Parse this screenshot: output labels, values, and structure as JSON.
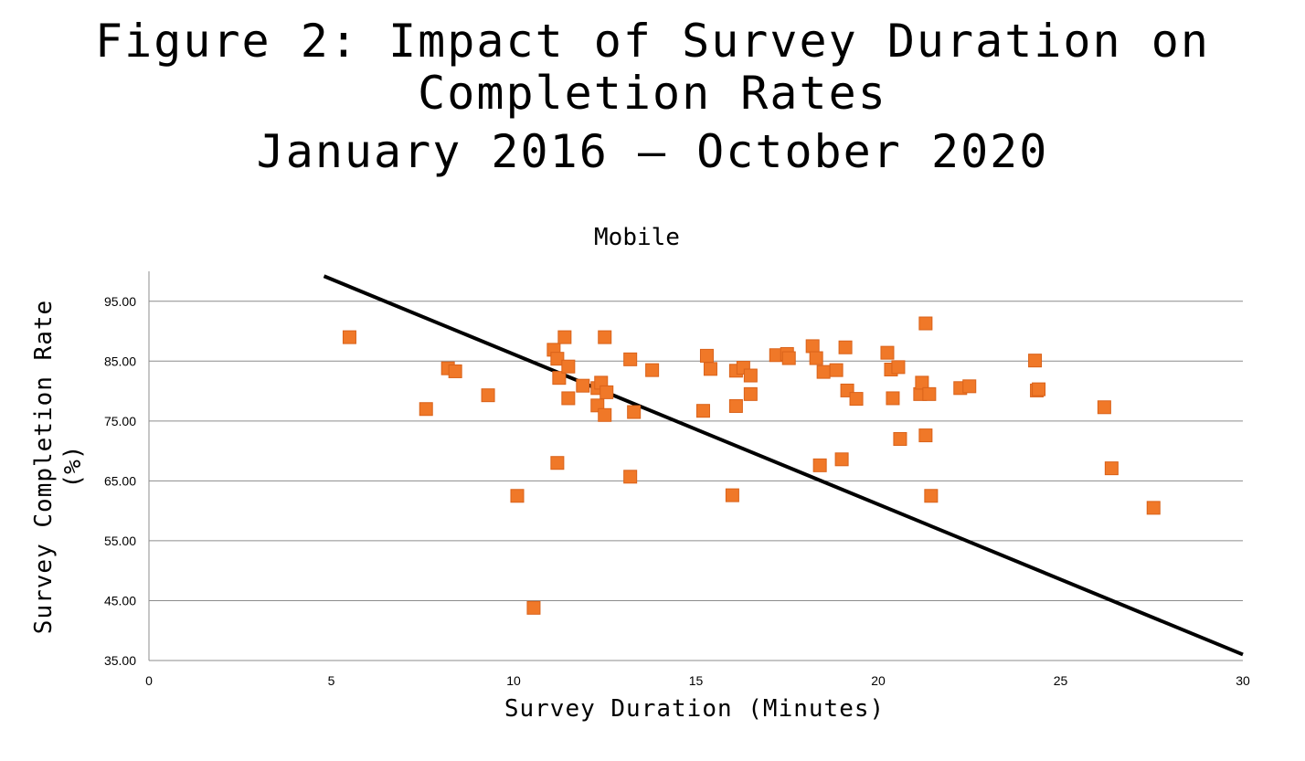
{
  "figure": {
    "title_line1": "Figure 2: Impact of Survey Duration on",
    "title_line2": "Completion Rates",
    "title_line3": "January 2016 – October 2020"
  },
  "chart_data": {
    "type": "scatter",
    "title": "Mobile",
    "xlabel": "Survey Duration (Minutes)",
    "ylabel_line1": "Survey Completion Rate",
    "ylabel_line2": "(%)",
    "xlim": [
      0,
      30
    ],
    "ylim": [
      35,
      100
    ],
    "x_ticks": [
      0,
      5,
      10,
      15,
      20,
      25,
      30
    ],
    "y_ticks": [
      35,
      45,
      55,
      65,
      75,
      85,
      95
    ],
    "x_tick_labels": [
      "0",
      "5",
      "10",
      "15",
      "20",
      "25",
      "30"
    ],
    "y_tick_labels": [
      "35.00",
      "45.00",
      "55.00",
      "65.00",
      "75.00",
      "85.00",
      "95.00"
    ],
    "grid": "horizontal",
    "marker_color": "#f07828",
    "trendline_color": "#000000",
    "trendline": {
      "x": [
        4.8,
        30
      ],
      "y": [
        99.2,
        36
      ]
    },
    "points": [
      {
        "x": 5.5,
        "y": 89.0
      },
      {
        "x": 7.6,
        "y": 77.0
      },
      {
        "x": 8.2,
        "y": 83.8
      },
      {
        "x": 8.4,
        "y": 83.3
      },
      {
        "x": 9.3,
        "y": 79.3
      },
      {
        "x": 10.1,
        "y": 62.5
      },
      {
        "x": 10.55,
        "y": 43.8
      },
      {
        "x": 11.1,
        "y": 86.9
      },
      {
        "x": 11.2,
        "y": 85.4
      },
      {
        "x": 11.25,
        "y": 82.2
      },
      {
        "x": 11.2,
        "y": 68.0
      },
      {
        "x": 11.4,
        "y": 89.0
      },
      {
        "x": 11.5,
        "y": 84.1
      },
      {
        "x": 11.5,
        "y": 78.8
      },
      {
        "x": 11.9,
        "y": 80.9
      },
      {
        "x": 12.3,
        "y": 80.5
      },
      {
        "x": 12.3,
        "y": 77.6
      },
      {
        "x": 12.4,
        "y": 81.4
      },
      {
        "x": 12.5,
        "y": 89.0
      },
      {
        "x": 12.55,
        "y": 79.8
      },
      {
        "x": 12.5,
        "y": 76.0
      },
      {
        "x": 13.2,
        "y": 85.3
      },
      {
        "x": 13.3,
        "y": 76.5
      },
      {
        "x": 13.2,
        "y": 65.7
      },
      {
        "x": 13.8,
        "y": 83.5
      },
      {
        "x": 15.2,
        "y": 76.7
      },
      {
        "x": 15.3,
        "y": 85.9
      },
      {
        "x": 15.4,
        "y": 83.7
      },
      {
        "x": 16.0,
        "y": 62.6
      },
      {
        "x": 16.1,
        "y": 83.4
      },
      {
        "x": 16.1,
        "y": 77.5
      },
      {
        "x": 16.3,
        "y": 83.9
      },
      {
        "x": 16.5,
        "y": 82.6
      },
      {
        "x": 16.5,
        "y": 79.5
      },
      {
        "x": 17.2,
        "y": 86.0
      },
      {
        "x": 17.5,
        "y": 86.2
      },
      {
        "x": 17.55,
        "y": 85.5
      },
      {
        "x": 18.2,
        "y": 87.5
      },
      {
        "x": 18.3,
        "y": 85.5
      },
      {
        "x": 18.4,
        "y": 67.6
      },
      {
        "x": 18.5,
        "y": 83.2
      },
      {
        "x": 18.85,
        "y": 83.5
      },
      {
        "x": 19.0,
        "y": 68.6
      },
      {
        "x": 19.1,
        "y": 87.3
      },
      {
        "x": 19.15,
        "y": 80.1
      },
      {
        "x": 19.4,
        "y": 78.7
      },
      {
        "x": 20.25,
        "y": 86.4
      },
      {
        "x": 20.35,
        "y": 83.6
      },
      {
        "x": 20.4,
        "y": 78.8
      },
      {
        "x": 20.55,
        "y": 84.0
      },
      {
        "x": 20.6,
        "y": 72.0
      },
      {
        "x": 21.15,
        "y": 79.5
      },
      {
        "x": 21.2,
        "y": 81.4
      },
      {
        "x": 21.3,
        "y": 91.3
      },
      {
        "x": 21.3,
        "y": 72.6
      },
      {
        "x": 21.4,
        "y": 79.5
      },
      {
        "x": 21.45,
        "y": 62.5
      },
      {
        "x": 22.25,
        "y": 80.5
      },
      {
        "x": 22.5,
        "y": 80.8
      },
      {
        "x": 24.3,
        "y": 85.1
      },
      {
        "x": 24.35,
        "y": 80.1
      },
      {
        "x": 24.4,
        "y": 80.3
      },
      {
        "x": 26.2,
        "y": 77.3
      },
      {
        "x": 26.4,
        "y": 67.1
      },
      {
        "x": 27.55,
        "y": 60.5
      }
    ]
  }
}
